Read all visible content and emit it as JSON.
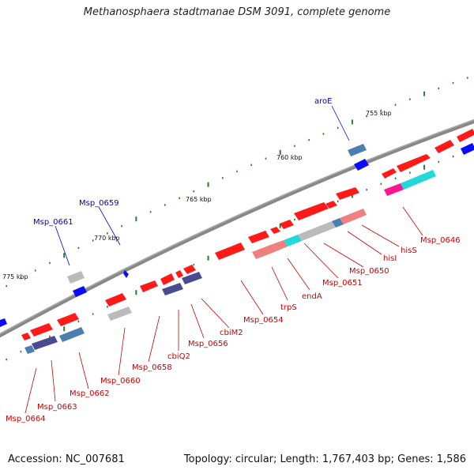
{
  "title": "Methanosphaera stadtmanae DSM 3091, complete genome",
  "footer": {
    "accession": "Accession: NC_007681",
    "summary": "Topology: circular; Length: 1,767,403 bp; Genes: 1,586"
  },
  "colors": {
    "backbone": "#777777",
    "forward_gene": "#ff1a1a",
    "pale_gene": "#f08080",
    "grey_gene": "#bbbbbb",
    "cyan_gene": "#22d8d8",
    "magenta_gene": "#ff1493",
    "steelblue_gene": "#4a7fb0",
    "slate_gene": "#4a4a90",
    "blue_gene": "#0a0aff",
    "tick_dash": "#2a7a2a",
    "label_red": "#cc0000",
    "label_blue": "#0000cc"
  },
  "ticks": [
    {
      "label": "755 kbp"
    },
    {
      "label": "760 kbp"
    },
    {
      "label": "765 kbp"
    },
    {
      "label": "770 kbp"
    },
    {
      "label": "775 kbp"
    }
  ],
  "labels_top": [
    {
      "text": "aroE"
    },
    {
      "text": "Msp_0659"
    },
    {
      "text": "Msp_0661"
    }
  ],
  "labels_bottom": [
    {
      "text": "Msp_0646"
    },
    {
      "text": "hisS"
    },
    {
      "text": "hisI"
    },
    {
      "text": "Msp_0650"
    },
    {
      "text": "Msp_0651"
    },
    {
      "text": "endA"
    },
    {
      "text": "trpS"
    },
    {
      "text": "Msp_0654"
    },
    {
      "text": "cbiM2"
    },
    {
      "text": "Msp_0656"
    },
    {
      "text": "cbiQ2"
    },
    {
      "text": "Msp_0658"
    },
    {
      "text": "Msp_0660"
    },
    {
      "text": "Msp_0662"
    },
    {
      "text": "Msp_0663"
    },
    {
      "text": "Msp_0664"
    }
  ]
}
